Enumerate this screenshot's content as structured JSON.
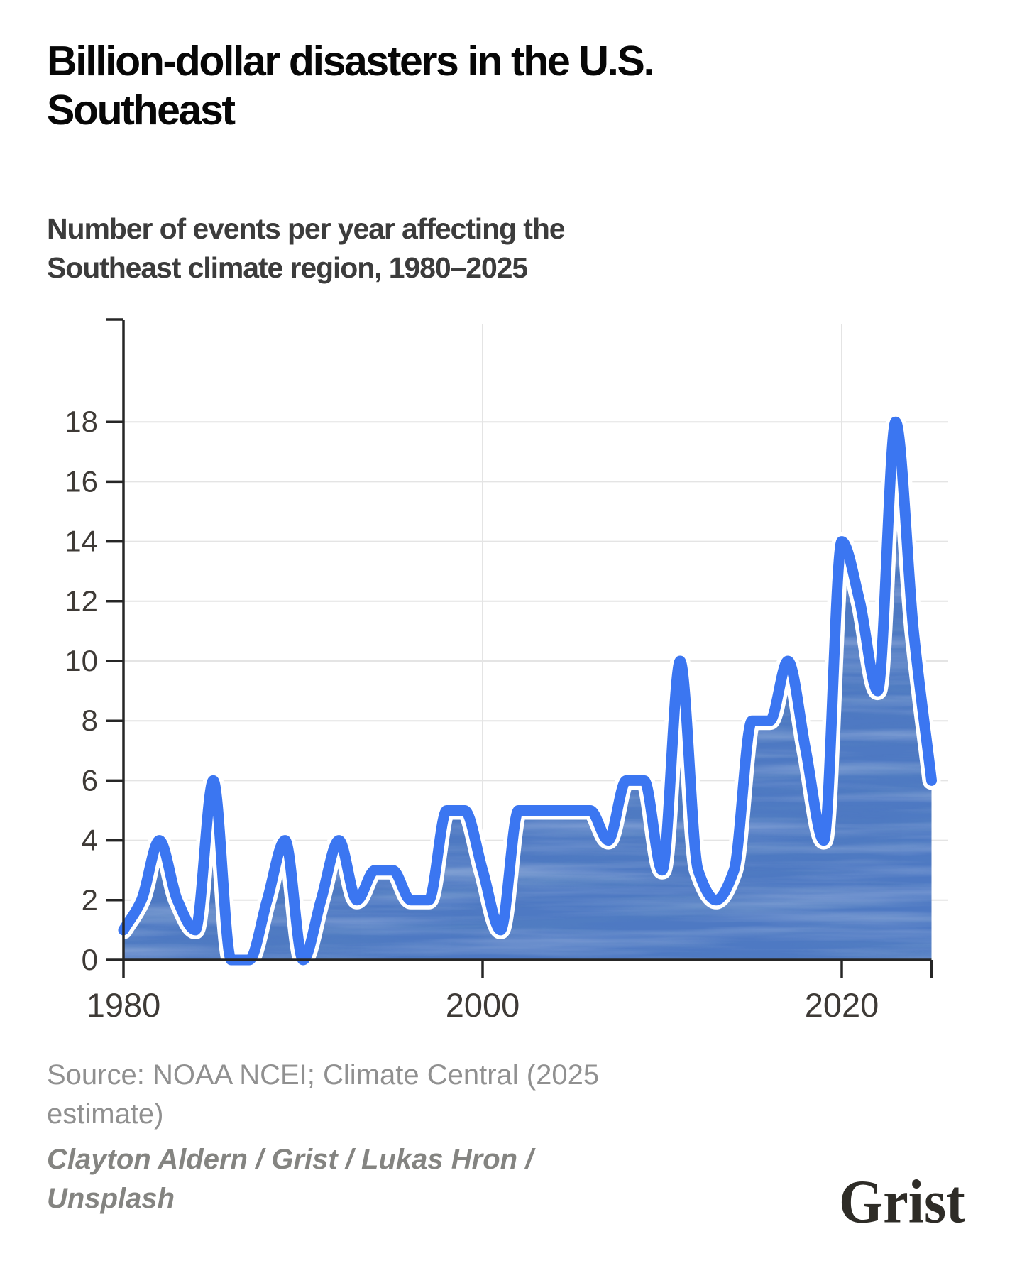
{
  "title": {
    "lines": [
      "Billion-dollar disasters in the U.S.",
      "Southeast"
    ]
  },
  "subtitle": {
    "lines": [
      "Number of events per year affecting the",
      "Southeast climate region, 1980–2025"
    ]
  },
  "source": {
    "lines": [
      "Source: NOAA NCEI; Climate Central (2025",
      "estimate)"
    ]
  },
  "credit": {
    "lines": [
      "Clayton Aldern / Grist / Lukas Hron /",
      "Unsplash"
    ]
  },
  "logo": {
    "text": "Grist"
  },
  "chart_data": {
    "type": "area",
    "title": "Billion-dollar disasters in the U.S. Southeast",
    "subtitle": "Number of events per year affecting the Southeast climate region, 1980–2025",
    "xlabel": "",
    "ylabel": "",
    "x": [
      1980,
      1981,
      1982,
      1983,
      1984,
      1985,
      1986,
      1987,
      1988,
      1989,
      1990,
      1991,
      1992,
      1993,
      1994,
      1995,
      1996,
      1997,
      1998,
      1999,
      2000,
      2001,
      2002,
      2003,
      2004,
      2005,
      2006,
      2007,
      2008,
      2009,
      2010,
      2011,
      2012,
      2013,
      2014,
      2015,
      2016,
      2017,
      2018,
      2019,
      2020,
      2021,
      2022,
      2023,
      2024,
      2025
    ],
    "values": [
      1,
      2,
      4,
      2,
      1,
      6,
      0,
      0,
      2,
      4,
      0,
      2,
      4,
      2,
      3,
      3,
      2,
      2,
      5,
      5,
      3,
      1,
      5,
      5,
      5,
      5,
      5,
      4,
      6,
      6,
      3,
      10,
      3,
      2,
      3,
      8,
      8,
      10,
      7,
      4,
      14,
      12,
      9,
      18,
      11,
      6
    ],
    "xlim": [
      1980,
      2025
    ],
    "ylim": [
      0,
      19
    ],
    "y_ticks": [
      0,
      2,
      4,
      6,
      8,
      10,
      12,
      14,
      16,
      18
    ],
    "x_ticks": [
      1980,
      2000,
      2020
    ],
    "x_gridlines": [
      2000,
      2020
    ],
    "grid": true,
    "legend": false,
    "smoothing": "monotone",
    "colors": {
      "line": "#3b76f1",
      "line_halo": "#ffffff",
      "area_fill": "#4e79c3",
      "area_streak_dark": "#1d4585",
      "gridline": "#e4e4e4",
      "axis": "#262626",
      "tick_label": "#3e3a36"
    }
  }
}
